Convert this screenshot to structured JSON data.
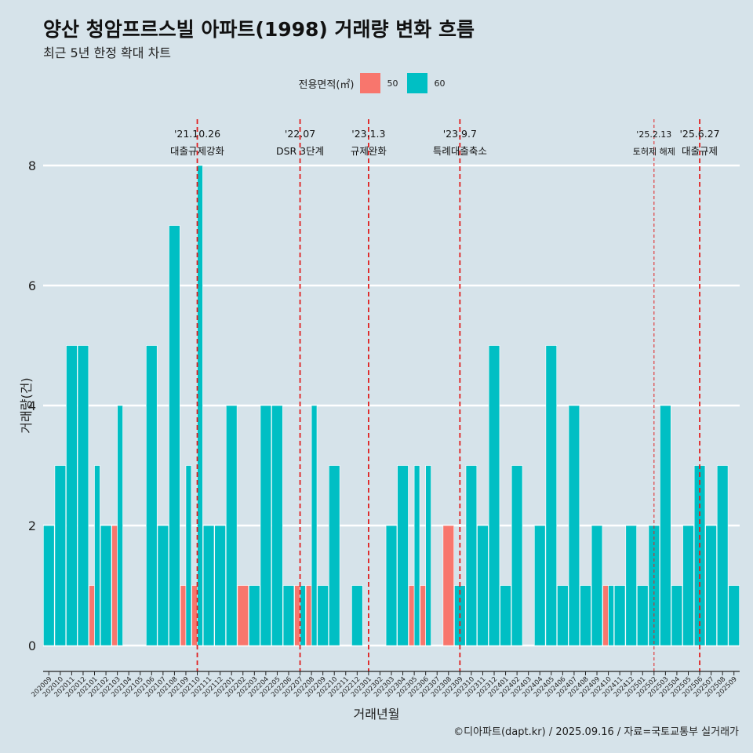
{
  "title": "양산 청암프르스빌 아파트(1998) 거래량 변화 흐름",
  "subtitle": "최근 5년 한정 확대 차트",
  "caption": "©디아파트(dapt.kr) / 2025.09.16 / 자료=국토교통부 실거래가",
  "colors": {
    "background": "#d6e3ea",
    "area50": "#f8766d",
    "area60": "#00bfc4",
    "event": "#e02020"
  },
  "chart_data": {
    "type": "bar",
    "xlabel": "거래년월",
    "ylabel": "거래량(건)",
    "ylim": [
      0,
      8
    ],
    "yticks": [
      0,
      2,
      4,
      6,
      8
    ],
    "legend": {
      "title": "전용면적(㎡)",
      "position": "top"
    },
    "categories": [
      "202009",
      "202010",
      "202011",
      "202012",
      "202101",
      "202102",
      "202103",
      "202104",
      "202105",
      "202106",
      "202107",
      "202108",
      "202109",
      "202110",
      "202111",
      "202112",
      "202201",
      "202202",
      "202203",
      "202204",
      "202205",
      "202206",
      "202207",
      "202208",
      "202209",
      "202210",
      "202211",
      "202212",
      "202301",
      "202302",
      "202303",
      "202304",
      "202305",
      "202306",
      "202307",
      "202308",
      "202309",
      "202310",
      "202311",
      "202312",
      "202401",
      "202402",
      "202403",
      "202404",
      "202405",
      "202406",
      "202407",
      "202408",
      "202409",
      "202410",
      "202411",
      "202412",
      "202501",
      "202502",
      "202503",
      "202504",
      "202505",
      "202506",
      "202507",
      "202508",
      "202509"
    ],
    "series": [
      {
        "name": "50",
        "values": [
          0,
          0,
          0,
          0,
          1,
          0,
          2,
          0,
          0,
          0,
          0,
          0,
          1,
          1,
          0,
          0,
          0,
          1,
          0,
          0,
          0,
          0,
          1,
          1,
          0,
          0,
          0,
          0,
          0,
          0,
          0,
          0,
          1,
          1,
          0,
          2,
          0,
          0,
          0,
          0,
          0,
          0,
          0,
          0,
          0,
          0,
          0,
          0,
          0,
          1,
          0,
          0,
          0,
          0,
          0,
          0,
          0,
          0,
          0,
          0,
          0
        ]
      },
      {
        "name": "60",
        "values": [
          2,
          3,
          5,
          5,
          3,
          2,
          4,
          0,
          0,
          5,
          2,
          7,
          3,
          8,
          2,
          2,
          4,
          0,
          1,
          4,
          4,
          1,
          1,
          4,
          1,
          3,
          0,
          1,
          0,
          0,
          2,
          3,
          3,
          3,
          0,
          0,
          1,
          3,
          2,
          5,
          1,
          3,
          0,
          2,
          5,
          1,
          4,
          1,
          2,
          1,
          1,
          2,
          1,
          2,
          4,
          1,
          2,
          3,
          2,
          3,
          1
        ]
      }
    ],
    "events": [
      {
        "date": "'21.10.26",
        "label": "대출규제강화",
        "at": "202110",
        "style": "dashed"
      },
      {
        "date": "'22.07",
        "label": "DSR 3단계",
        "at": "202207",
        "style": "dashed"
      },
      {
        "date": "'23.1.3",
        "label": "규제완화",
        "at": "202301",
        "style": "dashed"
      },
      {
        "date": "'23.9.7",
        "label": "특례대출축소",
        "at": "202309",
        "style": "dashed"
      },
      {
        "date": "'25.2.13",
        "label": "토허제 해제",
        "at": "202502",
        "style": "fine"
      },
      {
        "date": "'25.6.27",
        "label": "대출규제",
        "at": "202506",
        "style": "dashed"
      }
    ]
  }
}
